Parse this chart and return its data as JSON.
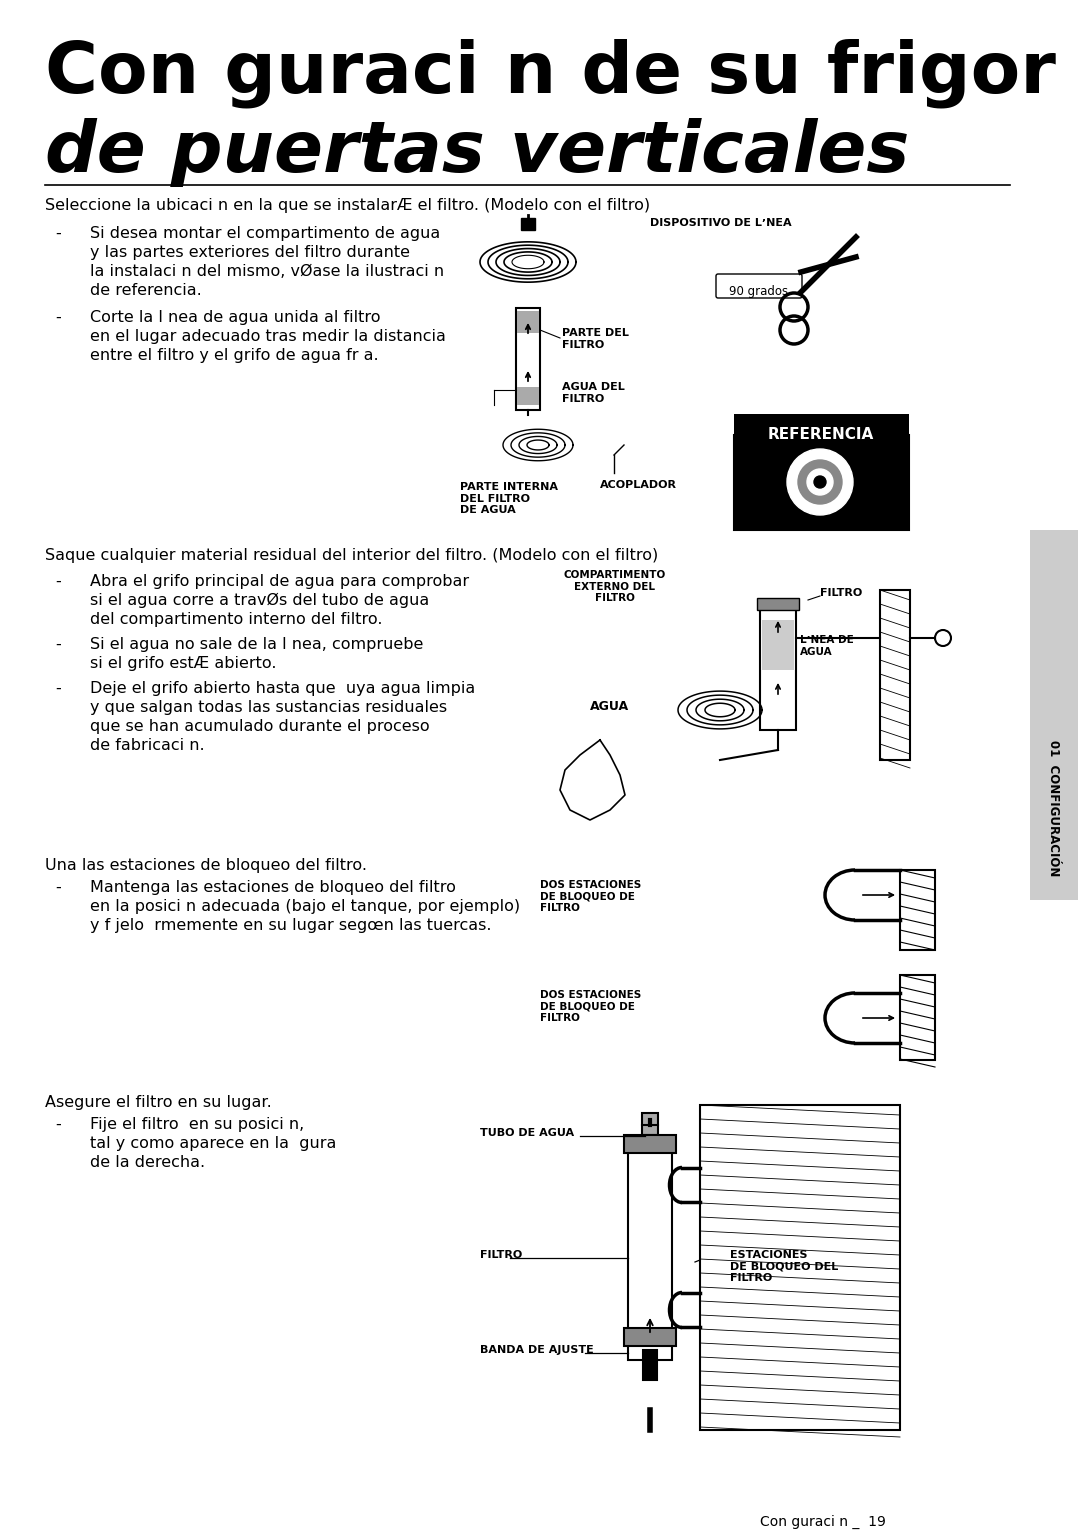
{
  "bg_color": "#ffffff",
  "text_color": "#000000",
  "title_line1": "Con guraci n de su frigor  co",
  "title_line2": "de puertas verticales",
  "section1_heading": "Seleccione la ubicaci n en la que se instalarÆ el filtro. (Modelo con el filtro)",
  "s1_b1": [
    "Si desea montar el compartimento de agua",
    "y las partes exteriores del filtro durante",
    "la instalaci n del mismo, vØase la ilustraci n",
    "de referencia."
  ],
  "s1_b2": [
    "Corte la l nea de agua unida al filtro",
    "en el lugar adecuado tras medir la distancia",
    "entre el filtro y el grifo de agua fr a."
  ],
  "section2_heading": "Saque cualquier material residual del interior del filtro. (Modelo con el filtro)",
  "s2_b1": [
    "Abra el grifo principal de agua para comprobar",
    "si el agua corre a travØs del tubo de agua",
    "del compartimento interno del filtro."
  ],
  "s2_b2": [
    "Si el agua no sale de la l nea, compruebe",
    "si el grifo estÆ abierto."
  ],
  "s2_b3": [
    "Deje el grifo abierto hasta que  uya agua limpia",
    "y que salgan todas las sustancias residuales",
    "que se han acumulado durante el proceso",
    "de fabricaci n."
  ],
  "section3_heading": "Una las estaciones de bloqueo del filtro.",
  "s3_b1": [
    "Mantenga las estaciones de bloqueo del filtro",
    "en la posici n adecuada (bajo el tanque, por ejemplo)",
    "y f jelo  rmemente en su lugar segœn las tuercas."
  ],
  "section4_heading": "Asegure el filtro en su lugar.",
  "s4_b1": [
    "Fije el filtro  en su posici n,",
    "tal y como aparece en la  gura",
    "de la derecha."
  ],
  "lbl_dispositivo": "DISPOSITIVO DE LʼNEA",
  "lbl_parte_del_filtro": "PARTE DEL\nFILTRO",
  "lbl_agua_del_filtro": "AGUA DEL\nFILTRO",
  "lbl_90_grados": "90 grados",
  "lbl_referencia": "REFERENCIA",
  "lbl_parte_interna": "PARTE INTERNA\nDEL FILTRO\nDE AGUA",
  "lbl_acoplador": "ACOPLADOR",
  "lbl_compartimento": "COMPARTIMENTO\nEXTERNO DEL\nFILTRO",
  "lbl_filtro_s2": "FILTRO",
  "lbl_linea_agua": "LʼNEA DE\nAGUA",
  "lbl_agua": "AGUA",
  "lbl_dos_est1": "DOS ESTACIONES\nDE BLOQUEO DE\nFILTRO",
  "lbl_dos_est2": "DOS ESTACIONES\nDE BLOQUEO DE\nFILTRO",
  "lbl_tubo_agua": "TUBO DE AGUA",
  "lbl_filtro_s4": "FILTRO",
  "lbl_estaciones_bloqueo": "ESTACIONES\nDE BLOQUEO DEL\nFILTRO",
  "lbl_banda_ajuste": "BANDA DE AJUSTE",
  "footer": "Con guraci n _  19",
  "sidebar": "01  CONFIGURACIÓN"
}
